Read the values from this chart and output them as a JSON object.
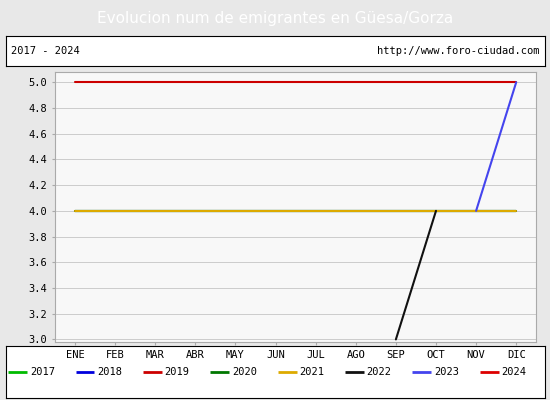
{
  "title": "Evolucion num de emigrantes en Güesa/Gorza",
  "title_bg": "#4d7ebf",
  "title_color": "white",
  "subtitle_left": "2017 - 2024",
  "subtitle_right": "http://www.foro-ciudad.com",
  "ylim": [
    2.98,
    5.08
  ],
  "yticks": [
    3.0,
    3.2,
    3.4,
    3.6,
    3.8,
    4.0,
    4.2,
    4.4,
    4.6,
    4.8,
    5.0
  ],
  "months": [
    "ENE",
    "FEB",
    "MAR",
    "ABR",
    "MAY",
    "JUN",
    "JUL",
    "AGO",
    "SEP",
    "OCT",
    "NOV",
    "DIC"
  ],
  "series": [
    {
      "label": "2017",
      "color": "#00bb00",
      "linewidth": 1.5,
      "data": [
        [
          1,
          4.0
        ],
        [
          12,
          4.0
        ]
      ]
    },
    {
      "label": "2018",
      "color": "#0000dd",
      "linewidth": 1.5,
      "data": [
        [
          1,
          4.0
        ],
        [
          12,
          4.0
        ]
      ]
    },
    {
      "label": "2019",
      "color": "#cc0000",
      "linewidth": 1.5,
      "data": [
        [
          1,
          5.0
        ],
        [
          12,
          5.0
        ]
      ]
    },
    {
      "label": "2020",
      "color": "#007700",
      "linewidth": 1.5,
      "data": [
        [
          1,
          4.0
        ],
        [
          12,
          4.0
        ]
      ]
    },
    {
      "label": "2021",
      "color": "#ddaa00",
      "linewidth": 1.5,
      "data": [
        [
          1,
          4.0
        ],
        [
          12,
          4.0
        ]
      ]
    },
    {
      "label": "2022",
      "color": "#111111",
      "linewidth": 1.5,
      "data": [
        [
          9,
          3.0
        ],
        [
          10,
          4.0
        ]
      ]
    },
    {
      "label": "2023",
      "color": "#4444ee",
      "linewidth": 1.5,
      "data": [
        [
          11,
          4.0
        ],
        [
          12,
          5.0
        ]
      ]
    },
    {
      "label": "2024",
      "color": "#dd0000",
      "linewidth": 1.5,
      "data": []
    }
  ],
  "bg_color": "#e8e8e8",
  "plot_bg": "#f8f8f8",
  "grid_color": "#cccccc",
  "title_fontsize": 11,
  "tick_fontsize": 7.5,
  "legend_fontsize": 7.5
}
